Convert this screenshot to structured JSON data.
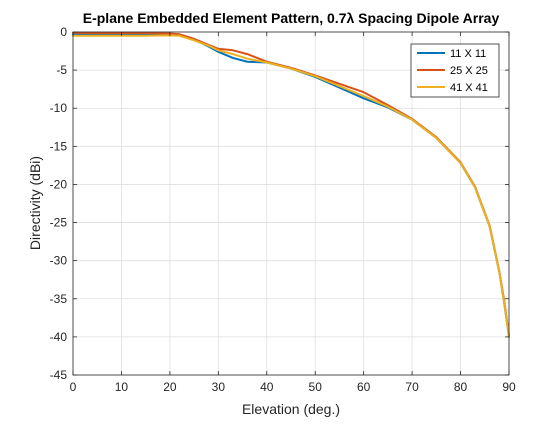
{
  "chart_data": {
    "type": "line",
    "title": "E-plane Embedded Element Pattern, 0.7λ Spacing Dipole Array",
    "xlabel": "Elevation (deg.)",
    "ylabel": "Directivity (dBi)",
    "xlim": [
      0,
      90
    ],
    "ylim": [
      -45,
      0
    ],
    "xticks": [
      0,
      10,
      20,
      30,
      40,
      50,
      60,
      70,
      80,
      90
    ],
    "yticks": [
      0,
      -5,
      -10,
      -15,
      -20,
      -25,
      -30,
      -35,
      -40,
      -45
    ],
    "xtick_labels": [
      "0",
      "10",
      "20",
      "30",
      "40",
      "50",
      "60",
      "70",
      "80",
      "90"
    ],
    "ytick_labels": [
      "0",
      "-5",
      "-10",
      "-15",
      "-20",
      "-25",
      "-30",
      "-35",
      "-40",
      "-45"
    ],
    "grid": true,
    "legend_position": "top-right",
    "series": [
      {
        "name": "11 X 11",
        "color": "#0072BD",
        "x": [
          0,
          5,
          10,
          15,
          20,
          22,
          25,
          28,
          30,
          33,
          36,
          40,
          45,
          50,
          55,
          60,
          65,
          70,
          75,
          80,
          83,
          86,
          88,
          89,
          90
        ],
        "y": [
          -0.3,
          -0.3,
          -0.3,
          -0.3,
          -0.3,
          -0.4,
          -1.0,
          -1.9,
          -2.6,
          -3.4,
          -3.9,
          -4.0,
          -4.8,
          -5.9,
          -7.3,
          -8.7,
          -9.9,
          -11.5,
          -13.9,
          -17.2,
          -20.4,
          -25.5,
          -31.5,
          -35.5,
          -40.0
        ]
      },
      {
        "name": "25 X 25",
        "color": "#D95319",
        "x": [
          0,
          5,
          10,
          15,
          20,
          22,
          25,
          28,
          30,
          33,
          36,
          40,
          45,
          50,
          55,
          60,
          65,
          70,
          75,
          80,
          83,
          86,
          88,
          89,
          90
        ],
        "y": [
          -0.1,
          -0.15,
          -0.15,
          -0.15,
          -0.2,
          -0.3,
          -0.9,
          -1.7,
          -2.2,
          -2.4,
          -2.9,
          -3.9,
          -4.7,
          -5.7,
          -6.8,
          -7.9,
          -9.6,
          -11.4,
          -13.8,
          -17.1,
          -20.3,
          -25.4,
          -31.4,
          -35.2,
          -39.8
        ]
      },
      {
        "name": "41 X 41",
        "color": "#EDB120",
        "x": [
          0,
          5,
          10,
          15,
          20,
          22,
          25,
          28,
          30,
          33,
          36,
          40,
          45,
          50,
          55,
          60,
          65,
          70,
          75,
          80,
          83,
          86,
          88,
          89,
          90
        ],
        "y": [
          -0.5,
          -0.5,
          -0.5,
          -0.5,
          -0.45,
          -0.5,
          -1.1,
          -1.8,
          -2.4,
          -2.9,
          -3.5,
          -4.0,
          -4.8,
          -5.8,
          -7.1,
          -8.4,
          -9.8,
          -11.5,
          -13.9,
          -17.2,
          -20.4,
          -25.5,
          -31.5,
          -35.5,
          -40.0
        ]
      }
    ]
  }
}
